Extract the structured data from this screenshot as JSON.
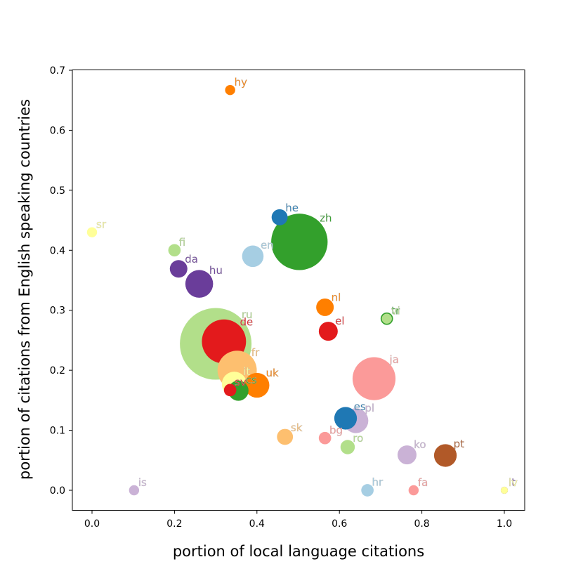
{
  "chart_data": {
    "type": "scatter",
    "title": "",
    "xlabel": "portion of local language citations",
    "ylabel": "portion of citations from English speaking countries",
    "xlim": [
      -0.05,
      1.05
    ],
    "ylim": [
      -0.033,
      0.7
    ],
    "xticks": [
      "0.0",
      "0.2",
      "0.4",
      "0.6",
      "0.8",
      "1.0"
    ],
    "xtick_values": [
      0,
      0.2,
      0.4,
      0.6,
      0.8,
      1.0
    ],
    "yticks": [
      "0.0",
      "0.1",
      "0.2",
      "0.3",
      "0.4",
      "0.5",
      "0.6",
      "0.7"
    ],
    "ytick_values": [
      0,
      0.1,
      0.2,
      0.3,
      0.4,
      0.5,
      0.6,
      0.7
    ],
    "grid": false,
    "bubble_size": "relative size of language",
    "points": [
      {
        "label": "ru",
        "x": 0.3,
        "y": 0.244,
        "size": 1.0,
        "color": "#b2df8a"
      },
      {
        "label": "hy",
        "x": 0.335,
        "y": 0.667,
        "size": 0.02,
        "color": "#ff7f00"
      },
      {
        "label": "sr",
        "x": 0.0,
        "y": 0.43,
        "size": 0.02,
        "color": "#ffff99"
      },
      {
        "label": "he",
        "x": 0.455,
        "y": 0.455,
        "size": 0.05,
        "color": "#1f78b4"
      },
      {
        "label": "zh",
        "x": 0.503,
        "y": 0.414,
        "size": 0.62,
        "color": "#33a02c"
      },
      {
        "label": "fi",
        "x": 0.2,
        "y": 0.4,
        "size": 0.03,
        "color": "#b2df8a"
      },
      {
        "label": "en",
        "x": 0.39,
        "y": 0.39,
        "size": 0.09,
        "color": "#a6cee3"
      },
      {
        "label": "da",
        "x": 0.21,
        "y": 0.369,
        "size": 0.06,
        "color": "#6a3d9a"
      },
      {
        "label": "hu",
        "x": 0.26,
        "y": 0.344,
        "size": 0.15,
        "color": "#6a3d9a"
      },
      {
        "label": "nl",
        "x": 0.565,
        "y": 0.305,
        "size": 0.06,
        "color": "#ff7f00"
      },
      {
        "label": "tr",
        "x": 0.715,
        "y": 0.286,
        "size": 0.03,
        "color": "#33a02c"
      },
      {
        "label": "vi",
        "x": 0.715,
        "y": 0.286,
        "size": 0.02,
        "color": "#b2df8a"
      },
      {
        "label": "el",
        "x": 0.573,
        "y": 0.265,
        "size": 0.07,
        "color": "#e31a1c"
      },
      {
        "label": "de",
        "x": 0.32,
        "y": 0.248,
        "size": 0.38,
        "color": "#e31a1c"
      },
      {
        "label": "ja",
        "x": 0.684,
        "y": 0.186,
        "size": 0.36,
        "color": "#fb9a99"
      },
      {
        "label": "fr",
        "x": 0.352,
        "y": 0.2,
        "size": 0.3,
        "color": "#fdbf6f"
      },
      {
        "label": "it",
        "x": 0.345,
        "y": 0.177,
        "size": 0.12,
        "color": "#ffff99"
      },
      {
        "label": "uk",
        "x": 0.4,
        "y": 0.175,
        "size": 0.12,
        "color": "#ff7f00"
      },
      {
        "label": "sv",
        "x": 0.335,
        "y": 0.167,
        "size": 0.03,
        "color": "#e31a1c"
      },
      {
        "label": "cs",
        "x": 0.355,
        "y": 0.166,
        "size": 0.08,
        "color": "#33a02c"
      },
      {
        "label": "es",
        "x": 0.615,
        "y": 0.12,
        "size": 0.1,
        "color": "#1f78b4"
      },
      {
        "label": "pl",
        "x": 0.64,
        "y": 0.116,
        "size": 0.12,
        "color": "#cab2d6"
      },
      {
        "label": "sk",
        "x": 0.468,
        "y": 0.089,
        "size": 0.05,
        "color": "#fdbf6f"
      },
      {
        "label": "bg",
        "x": 0.565,
        "y": 0.087,
        "size": 0.03,
        "color": "#fb9a99"
      },
      {
        "label": "ro",
        "x": 0.62,
        "y": 0.072,
        "size": 0.04,
        "color": "#b2df8a"
      },
      {
        "label": "ko",
        "x": 0.764,
        "y": 0.059,
        "size": 0.07,
        "color": "#cab2d6"
      },
      {
        "label": "pt",
        "x": 0.857,
        "y": 0.058,
        "size": 0.1,
        "color": "#b15928"
      },
      {
        "label": "is",
        "x": 0.102,
        "y": 0.0,
        "size": 0.02,
        "color": "#cab2d6"
      },
      {
        "label": "hr",
        "x": 0.668,
        "y": 0.0,
        "size": 0.03,
        "color": "#a6cee3"
      },
      {
        "label": "fa",
        "x": 0.78,
        "y": 0.0,
        "size": 0.02,
        "color": "#fb9a99"
      },
      {
        "label": "lt",
        "x": 1.0,
        "y": 0.0,
        "size": 0.01,
        "color": "#6a3d9a"
      },
      {
        "label": "lv",
        "x": 1.0,
        "y": 0.0,
        "size": 0.01,
        "color": "#ffff99"
      }
    ]
  }
}
